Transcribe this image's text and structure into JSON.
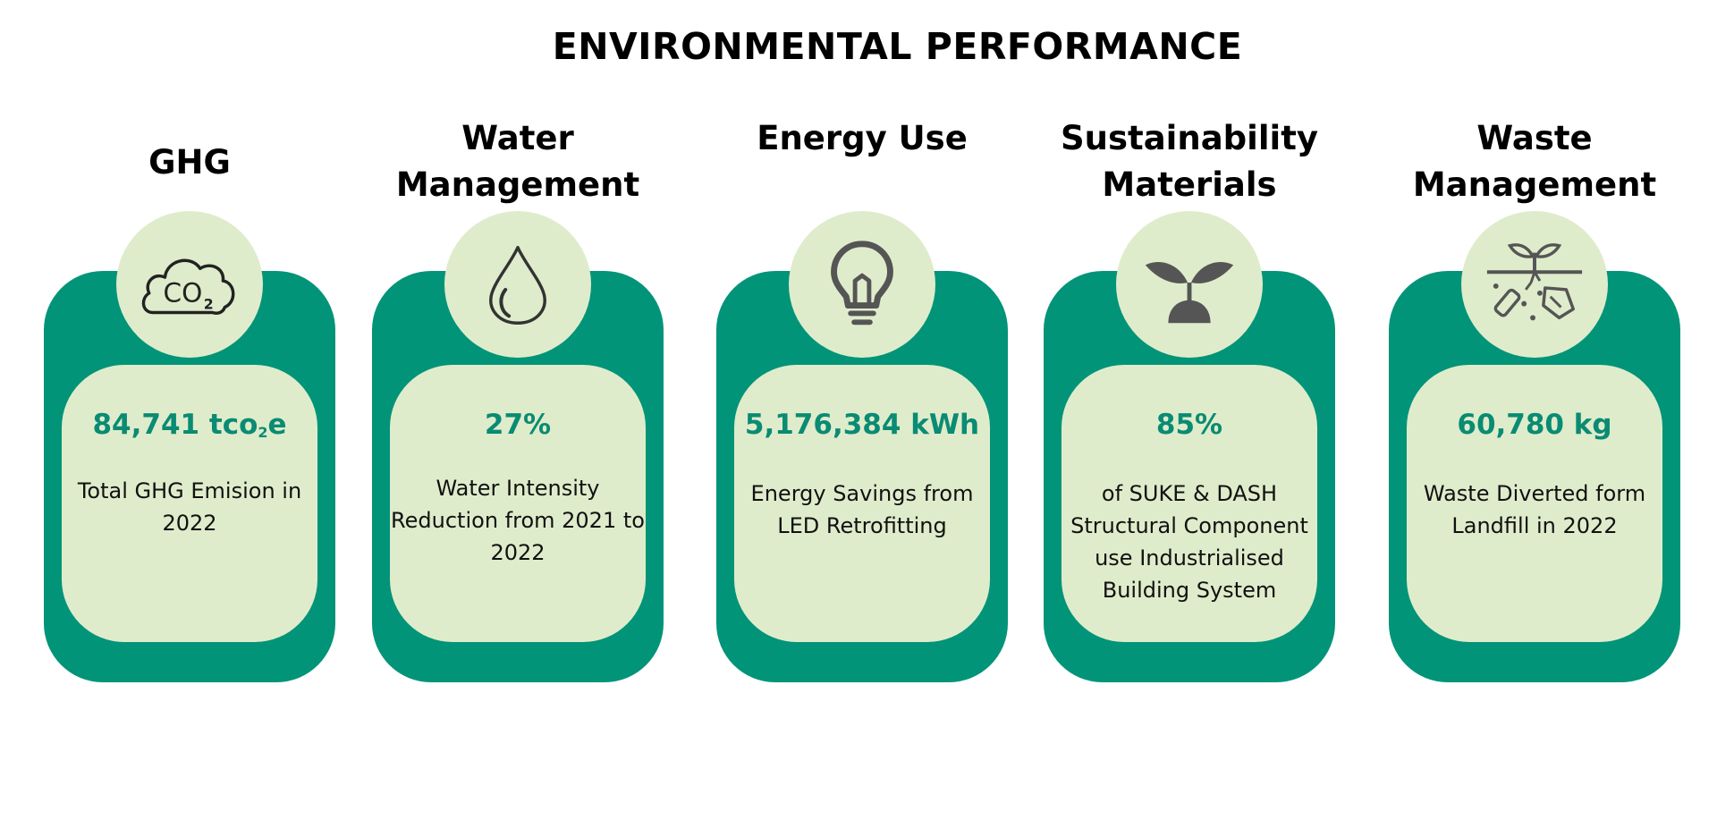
{
  "title": "ENVIRONMENTAL PERFORMANCE",
  "colors": {
    "card_outer": "#029478",
    "card_inner": "#dfeccb",
    "metric_text": "#0a8b73"
  },
  "cards": [
    {
      "heading": "GHG",
      "icon": "co2-cloud-icon",
      "metric_main": "84,741 tco",
      "metric_sub": "2",
      "metric_tail": "e",
      "description": "Total GHG Emision in 2022"
    },
    {
      "heading": "Water Management",
      "icon": "water-drop-icon",
      "metric": "27%",
      "description": "Water Intensity Reduction from 2021 to 2022"
    },
    {
      "heading": "Energy Use",
      "icon": "light-bulb-icon",
      "metric": "5,176,384 kWh",
      "description": "Energy Savings from LED Retrofitting"
    },
    {
      "heading": "Sustainability Materials",
      "icon": "sprout-icon",
      "metric": "85%",
      "description": "of SUKE & DASH Structural Component use Industrialised Building System"
    },
    {
      "heading": "Waste Management",
      "icon": "soil-waste-icon",
      "metric": "60,780 kg",
      "description": "Waste Diverted form Landfill in 2022"
    }
  ]
}
